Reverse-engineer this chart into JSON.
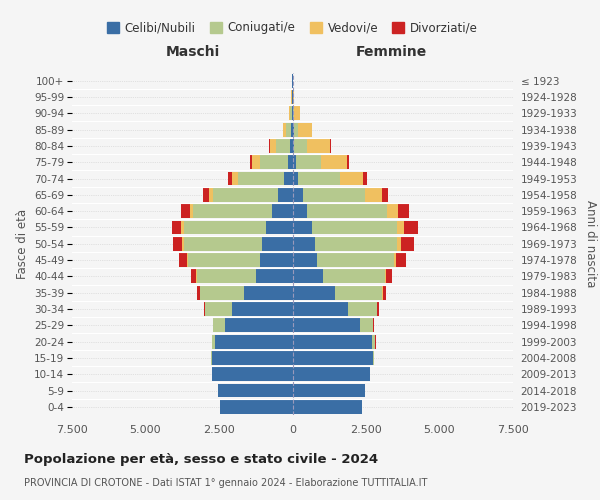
{
  "age_groups": [
    "0-4",
    "5-9",
    "10-14",
    "15-19",
    "20-24",
    "25-29",
    "30-34",
    "35-39",
    "40-44",
    "45-49",
    "50-54",
    "55-59",
    "60-64",
    "65-69",
    "70-74",
    "75-79",
    "80-84",
    "85-89",
    "90-94",
    "95-99",
    "100+"
  ],
  "birth_years": [
    "2019-2023",
    "2014-2018",
    "2009-2013",
    "2004-2008",
    "1999-2003",
    "1994-1998",
    "1989-1993",
    "1984-1988",
    "1979-1983",
    "1974-1978",
    "1969-1973",
    "1964-1968",
    "1959-1963",
    "1954-1958",
    "1949-1953",
    "1944-1948",
    "1939-1943",
    "1934-1938",
    "1929-1933",
    "1924-1928",
    "≤ 1923"
  ],
  "colors": {
    "celibi": "#3a6ea5",
    "coniugati": "#b5c98e",
    "vedovi": "#f0c060",
    "divorziati": "#cc2222"
  },
  "male": {
    "celibi": [
      2450,
      2550,
      2750,
      2750,
      2650,
      2300,
      2050,
      1650,
      1250,
      1100,
      1050,
      900,
      700,
      500,
      300,
      170,
      80,
      50,
      30,
      15,
      5
    ],
    "coniugati": [
      0,
      0,
      0,
      15,
      100,
      400,
      920,
      1500,
      2000,
      2450,
      2650,
      2800,
      2700,
      2200,
      1550,
      950,
      480,
      180,
      55,
      15,
      5
    ],
    "vedovi": [
      0,
      0,
      0,
      0,
      0,
      2,
      5,
      10,
      20,
      40,
      60,
      80,
      100,
      150,
      200,
      250,
      200,
      90,
      25,
      8,
      2
    ],
    "divorziati": [
      0,
      0,
      0,
      0,
      5,
      15,
      50,
      100,
      180,
      270,
      320,
      330,
      280,
      200,
      130,
      80,
      30,
      10,
      5,
      0,
      0
    ]
  },
  "female": {
    "celibi": [
      2350,
      2450,
      2650,
      2750,
      2700,
      2300,
      1900,
      1450,
      1050,
      850,
      750,
      650,
      500,
      350,
      200,
      120,
      60,
      35,
      20,
      10,
      5
    ],
    "coniugati": [
      0,
      0,
      0,
      20,
      120,
      450,
      980,
      1600,
      2100,
      2600,
      2800,
      2900,
      2700,
      2100,
      1400,
      850,
      430,
      140,
      45,
      12,
      4
    ],
    "vedovi": [
      0,
      0,
      0,
      0,
      2,
      5,
      10,
      20,
      40,
      80,
      150,
      250,
      400,
      600,
      800,
      900,
      800,
      480,
      180,
      45,
      8
    ],
    "divorziati": [
      0,
      0,
      0,
      0,
      5,
      15,
      40,
      100,
      200,
      320,
      420,
      480,
      350,
      200,
      120,
      60,
      30,
      12,
      5,
      0,
      0
    ]
  },
  "xlim": 7500,
  "xticks": [
    -7500,
    -5000,
    -2500,
    0,
    2500,
    5000,
    7500
  ],
  "xticklabels": [
    "7.500",
    "5.000",
    "2.500",
    "0",
    "2.500",
    "5.000",
    "7.500"
  ],
  "title": "Popolazione per età, sesso e stato civile - 2024",
  "subtitle": "PROVINCIA DI CROTONE - Dati ISTAT 1° gennaio 2024 - Elaborazione TUTTITALIA.IT",
  "ylabel_left": "Fasce di età",
  "ylabel_right": "Anni di nascita",
  "label_maschi": "Maschi",
  "label_femmine": "Femmine",
  "legend_labels": [
    "Celibi/Nubili",
    "Coniugati/e",
    "Vedovi/e",
    "Divorziati/e"
  ],
  "bg_color": "#f5f5f5",
  "bar_height": 0.85
}
